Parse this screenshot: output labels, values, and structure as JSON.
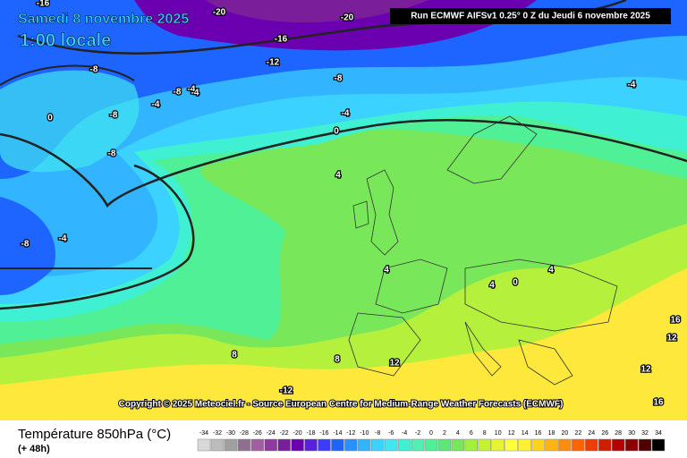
{
  "header": {
    "date": "Samedi 8 novembre 2025",
    "time": "1:00 locale",
    "run": "Run ECMWF AIFSv1 0.25° 0 Z du Jeudi 6 novembre 2025"
  },
  "copyright": "Copyright © 2025 Meteociel.fr - Source European Centre for Medium-Range Weather Forecasts (ECMWF)",
  "legend": {
    "title": "Température 850hPa (°C)",
    "subtitle": "(+ 48h)",
    "labels": [
      -34,
      -32,
      -30,
      -28,
      -26,
      -24,
      -22,
      -20,
      -18,
      -16,
      -14,
      -12,
      -10,
      -8,
      -6,
      -4,
      -2,
      0,
      2,
      4,
      6,
      8,
      10,
      12,
      14,
      16,
      18,
      20,
      22,
      24,
      26,
      28,
      30,
      32,
      34
    ],
    "colors": [
      "#d8d8d8",
      "#bcbcbc",
      "#a0a0a0",
      "#907090",
      "#a060a0",
      "#8c3c9c",
      "#7a1e9a",
      "#6a00b0",
      "#5a1ee0",
      "#3c3cff",
      "#1e64ff",
      "#2890ff",
      "#32b4ff",
      "#3cd2ff",
      "#40e6f0",
      "#40f0d2",
      "#50f0b4",
      "#50f096",
      "#5ae878",
      "#78e85a",
      "#a0f03c",
      "#c8f032",
      "#e6f532",
      "#ffff3c",
      "#fff032",
      "#ffd21e",
      "#ffb414",
      "#ff8c0a",
      "#ff6400",
      "#f03c00",
      "#d21e00",
      "#b40000",
      "#8c0000",
      "#500000",
      "#000000"
    ]
  },
  "map": {
    "contour_labels": [
      -20,
      -20,
      -16,
      -16,
      -12,
      -8,
      -8,
      -4,
      -4,
      -8,
      -8,
      -8,
      0,
      -4,
      -8,
      -4,
      -4,
      0,
      -4,
      4,
      4,
      4,
      0,
      4,
      8,
      8,
      12,
      12,
      12,
      16,
      16,
      -12
    ]
  }
}
